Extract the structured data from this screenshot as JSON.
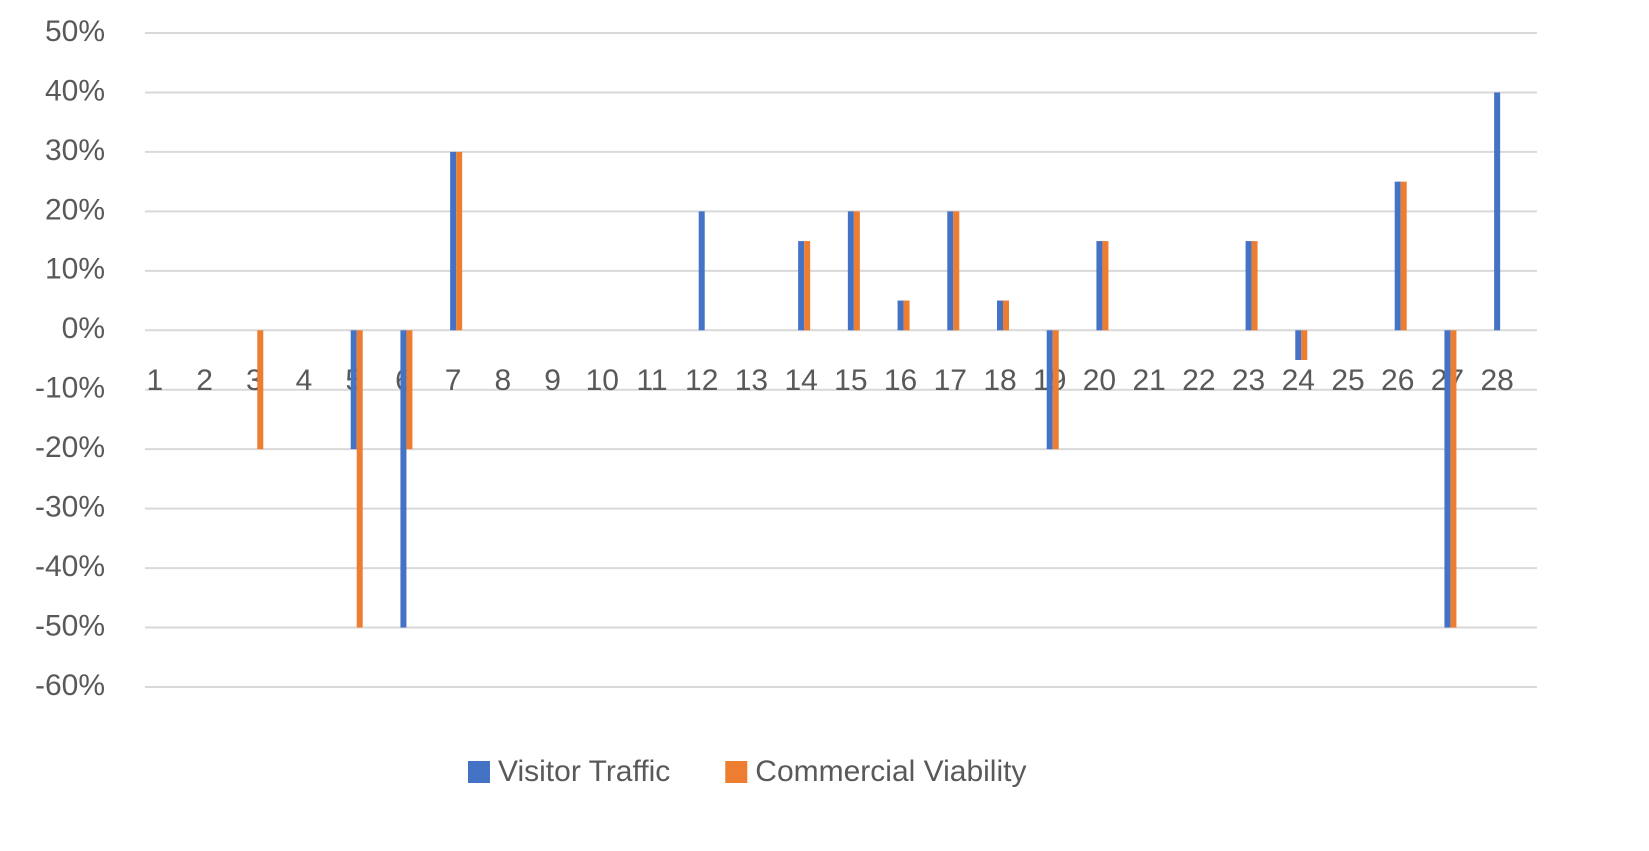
{
  "chart_data": {
    "type": "bar",
    "categories": [
      "1",
      "2",
      "3",
      "4",
      "5",
      "6",
      "7",
      "8",
      "9",
      "10",
      "11",
      "12",
      "13",
      "14",
      "15",
      "16",
      "17",
      "18",
      "19",
      "20",
      "21",
      "22",
      "23",
      "24",
      "25",
      "26",
      "27",
      "28"
    ],
    "series": [
      {
        "name": "Visitor Traffic",
        "color": "#4472c4",
        "values": [
          0,
          0,
          0,
          0,
          -20,
          -50,
          30,
          0,
          0,
          0,
          0,
          20,
          0,
          15,
          20,
          5,
          20,
          5,
          -20,
          15,
          0,
          0,
          15,
          -5,
          0,
          25,
          -50,
          40
        ]
      },
      {
        "name": "Commercial Viability",
        "color": "#ed7d31",
        "values": [
          0,
          0,
          -20,
          0,
          -50,
          -20,
          30,
          0,
          0,
          0,
          0,
          0,
          0,
          15,
          20,
          5,
          20,
          5,
          -20,
          15,
          0,
          0,
          15,
          -5,
          0,
          25,
          -50,
          0
        ]
      }
    ],
    "ylim": [
      -60,
      50
    ],
    "yticks": [
      {
        "value": -60,
        "label": "-60%"
      },
      {
        "value": -50,
        "label": "-50%"
      },
      {
        "value": -40,
        "label": "-40%"
      },
      {
        "value": -30,
        "label": "-30%"
      },
      {
        "value": -20,
        "label": "-20%"
      },
      {
        "value": -10,
        "label": "-10%"
      },
      {
        "value": 0,
        "label": "0%"
      },
      {
        "value": 10,
        "label": "10%"
      },
      {
        "value": 20,
        "label": "20%"
      },
      {
        "value": 30,
        "label": "30%"
      },
      {
        "value": 40,
        "label": "40%"
      },
      {
        "value": 50,
        "label": "50%"
      }
    ],
    "grid": true,
    "legend": "bottom"
  }
}
